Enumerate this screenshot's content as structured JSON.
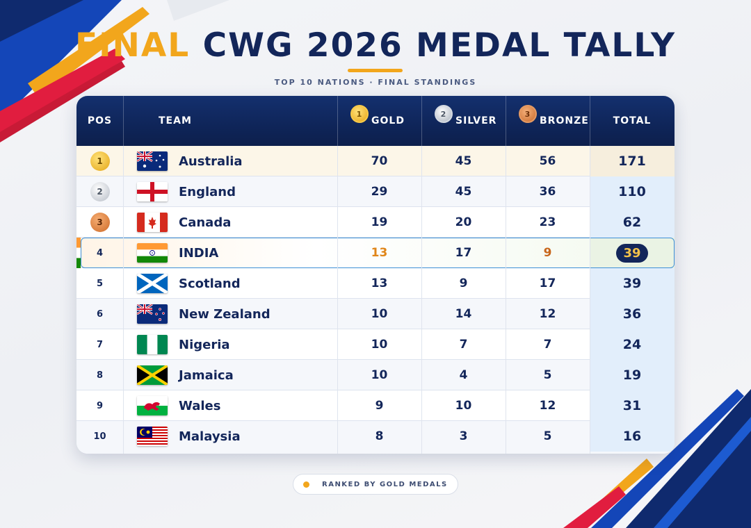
{
  "header": {
    "title_accent": "FINAL",
    "title_main": "CWG 2026 MEDAL TALLY",
    "subtitle": "TOP 10 NATIONS · FINAL STANDINGS"
  },
  "table": {
    "columns": {
      "pos": "POS",
      "team": "TEAM",
      "gold": "GOLD",
      "silver": "SILVER",
      "bronze": "BRONZE",
      "total": "TOTAL",
      "gold_icon_num": "1",
      "silver_icon_num": "2",
      "bronze_icon_num": "3"
    },
    "rows": [
      {
        "pos": "1",
        "team": "Australia",
        "gold": "70",
        "silver": "45",
        "bronze": "56",
        "total": "171"
      },
      {
        "pos": "2",
        "team": "England",
        "gold": "29",
        "silver": "45",
        "bronze": "36",
        "total": "110"
      },
      {
        "pos": "3",
        "team": "Canada",
        "gold": "19",
        "silver": "20",
        "bronze": "23",
        "total": "62"
      },
      {
        "pos": "4",
        "team": "INDIA",
        "gold": "13",
        "silver": "17",
        "bronze": "9",
        "total": "39"
      },
      {
        "pos": "5",
        "team": "Scotland",
        "gold": "13",
        "silver": "9",
        "bronze": "17",
        "total": "39"
      },
      {
        "pos": "6",
        "team": "New Zealand",
        "gold": "10",
        "silver": "14",
        "bronze": "12",
        "total": "36"
      },
      {
        "pos": "7",
        "team": "Nigeria",
        "gold": "10",
        "silver": "7",
        "bronze": "7",
        "total": "24"
      },
      {
        "pos": "8",
        "team": "Jamaica",
        "gold": "10",
        "silver": "4",
        "bronze": "5",
        "total": "19"
      },
      {
        "pos": "9",
        "team": "Wales",
        "gold": "9",
        "silver": "10",
        "bronze": "12",
        "total": "31"
      },
      {
        "pos": "10",
        "team": "Malaysia",
        "gold": "8",
        "silver": "3",
        "bronze": "5",
        "total": "16"
      }
    ]
  },
  "footer": {
    "note": "RANKED BY GOLD MEDALS"
  },
  "colors": {
    "navy": "#13265a",
    "accent_gold": "#f2a61c",
    "highlight_border": "#3d8fd6",
    "india_orange": "#e0861a"
  }
}
